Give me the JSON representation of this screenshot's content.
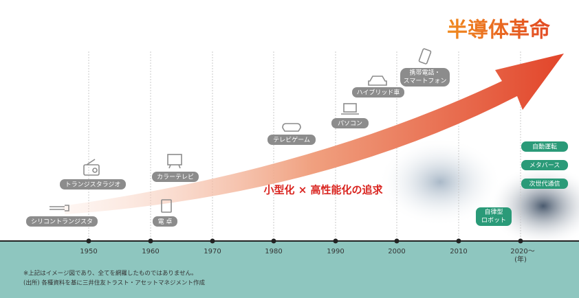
{
  "header": {
    "title": "半導体革命"
  },
  "tagline": "小型化 × 高性能化の追求",
  "timeline": {
    "years": [
      "1950",
      "1960",
      "1970",
      "1980",
      "1990",
      "2000",
      "2010",
      "2020〜"
    ],
    "unit": "(年)"
  },
  "milestones": [
    {
      "label": [
        "シリコントランジスタ"
      ]
    },
    {
      "label": [
        "トランジスタラジオ"
      ]
    },
    {
      "label": [
        "電 卓"
      ]
    },
    {
      "label": [
        "カラーテレビ"
      ]
    },
    {
      "label": [
        "テレビゲーム"
      ]
    },
    {
      "label": [
        "パソコン"
      ]
    },
    {
      "label": [
        "ハイブリッド車"
      ]
    },
    {
      "label": [
        "携帯電話・",
        "スマートフォン"
      ]
    }
  ],
  "future": [
    {
      "label": [
        "自動運転"
      ]
    },
    {
      "label": [
        "メタバース"
      ]
    },
    {
      "label": [
        "次世代通信"
      ]
    },
    {
      "label": [
        "自律型",
        "ロボット"
      ]
    }
  ],
  "notes": [
    "※上記はイメージ図であり、全てを網羅したものではありません。",
    "(出所) 各種資料を基に三井住友トラスト・アセットマネジメント作成"
  ]
}
